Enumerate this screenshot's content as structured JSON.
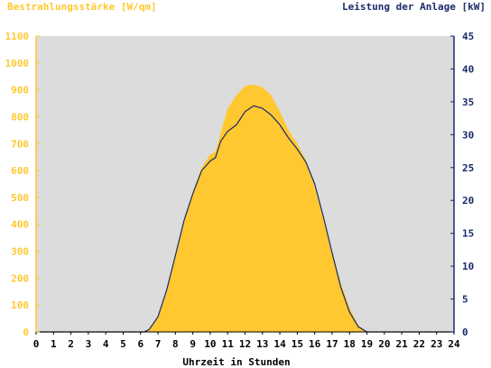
{
  "chart_data": {
    "type": "area",
    "title_left": "Bestrahlungsstärke [W/qm]",
    "title_right": "Leistung der Anlage [kW]",
    "xlabel": "Uhrzeit in Stunden",
    "grid": false,
    "xlim": [
      0,
      24
    ],
    "x_ticks": [
      "0",
      "1",
      "2",
      "3",
      "4",
      "5",
      "6",
      "7",
      "8",
      "9",
      "10",
      "11",
      "12",
      "13",
      "14",
      "15",
      "16",
      "17",
      "18",
      "19",
      "20",
      "21",
      "22",
      "23",
      "24"
    ],
    "y_left": {
      "min": 0,
      "max": 1100,
      "ticks": [
        "0",
        "100",
        "200",
        "300",
        "400",
        "500",
        "600",
        "700",
        "800",
        "900",
        "1000",
        "1100"
      ]
    },
    "y_right": {
      "min": 0,
      "max": 45,
      "ticks": [
        "0",
        "5",
        "10",
        "15",
        "20",
        "25",
        "30",
        "35",
        "40",
        "45"
      ]
    },
    "colors": {
      "plot_background": "#dcdcdc",
      "irradiance_fill": "#ffc830",
      "power_line": "#1a2a6a",
      "left_axis": "#ffc830",
      "right_axis": "#1a2a6a"
    },
    "series": [
      {
        "axis": "left",
        "style": "filled-area",
        "x": [
          0,
          6.2,
          6.5,
          7.0,
          7.5,
          8.0,
          8.5,
          9.0,
          9.5,
          10.0,
          10.3,
          10.6,
          11.0,
          11.5,
          12.0,
          12.5,
          13.0,
          13.5,
          14.0,
          14.5,
          15.0,
          15.5,
          16.0,
          16.5,
          17.0,
          17.5,
          18.0,
          18.5,
          19.0,
          24
        ],
        "y": [
          0,
          0,
          10,
          60,
          160,
          290,
          420,
          520,
          610,
          660,
          670,
          740,
          830,
          880,
          915,
          920,
          910,
          880,
          820,
          750,
          700,
          640,
          540,
          420,
          300,
          180,
          90,
          25,
          0,
          0
        ]
      },
      {
        "axis": "right",
        "style": "line",
        "x": [
          0,
          6.2,
          6.5,
          7.0,
          7.5,
          8.0,
          8.5,
          9.0,
          9.5,
          10.0,
          10.3,
          10.6,
          11.0,
          11.5,
          12.0,
          12.5,
          13.0,
          13.5,
          14.0,
          14.5,
          15.0,
          15.5,
          16.0,
          16.5,
          17.0,
          17.5,
          18.0,
          18.5,
          19.0,
          24
        ],
        "y": [
          0,
          0,
          0.4,
          2.3,
          6.4,
          11.6,
          17.0,
          21.0,
          24.5,
          26.0,
          26.5,
          29.0,
          30.5,
          31.5,
          33.5,
          34.4,
          34.0,
          33.0,
          31.5,
          29.5,
          27.8,
          25.8,
          22.5,
          17.5,
          12.0,
          6.8,
          3.0,
          0.8,
          0,
          0
        ]
      }
    ]
  }
}
